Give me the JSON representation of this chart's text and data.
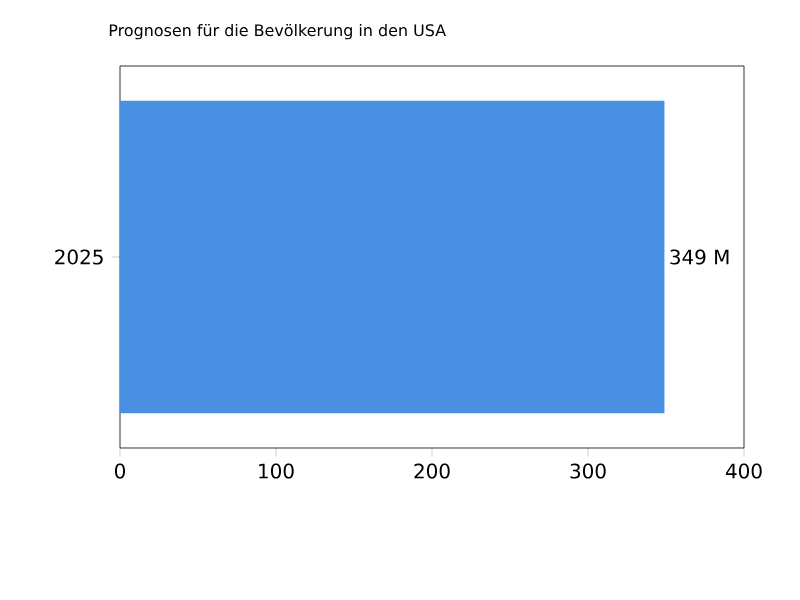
{
  "chart_data": {
    "type": "bar",
    "orientation": "horizontal",
    "title": "Prognosen für die Bevölkerung in den USA",
    "categories": [
      "2025"
    ],
    "values": [
      349
    ],
    "value_labels": [
      "349 M"
    ],
    "color": "#4a90e2",
    "xlim": [
      0,
      400
    ],
    "xticks": [
      0,
      100,
      200,
      300,
      400
    ],
    "grid": false
  }
}
